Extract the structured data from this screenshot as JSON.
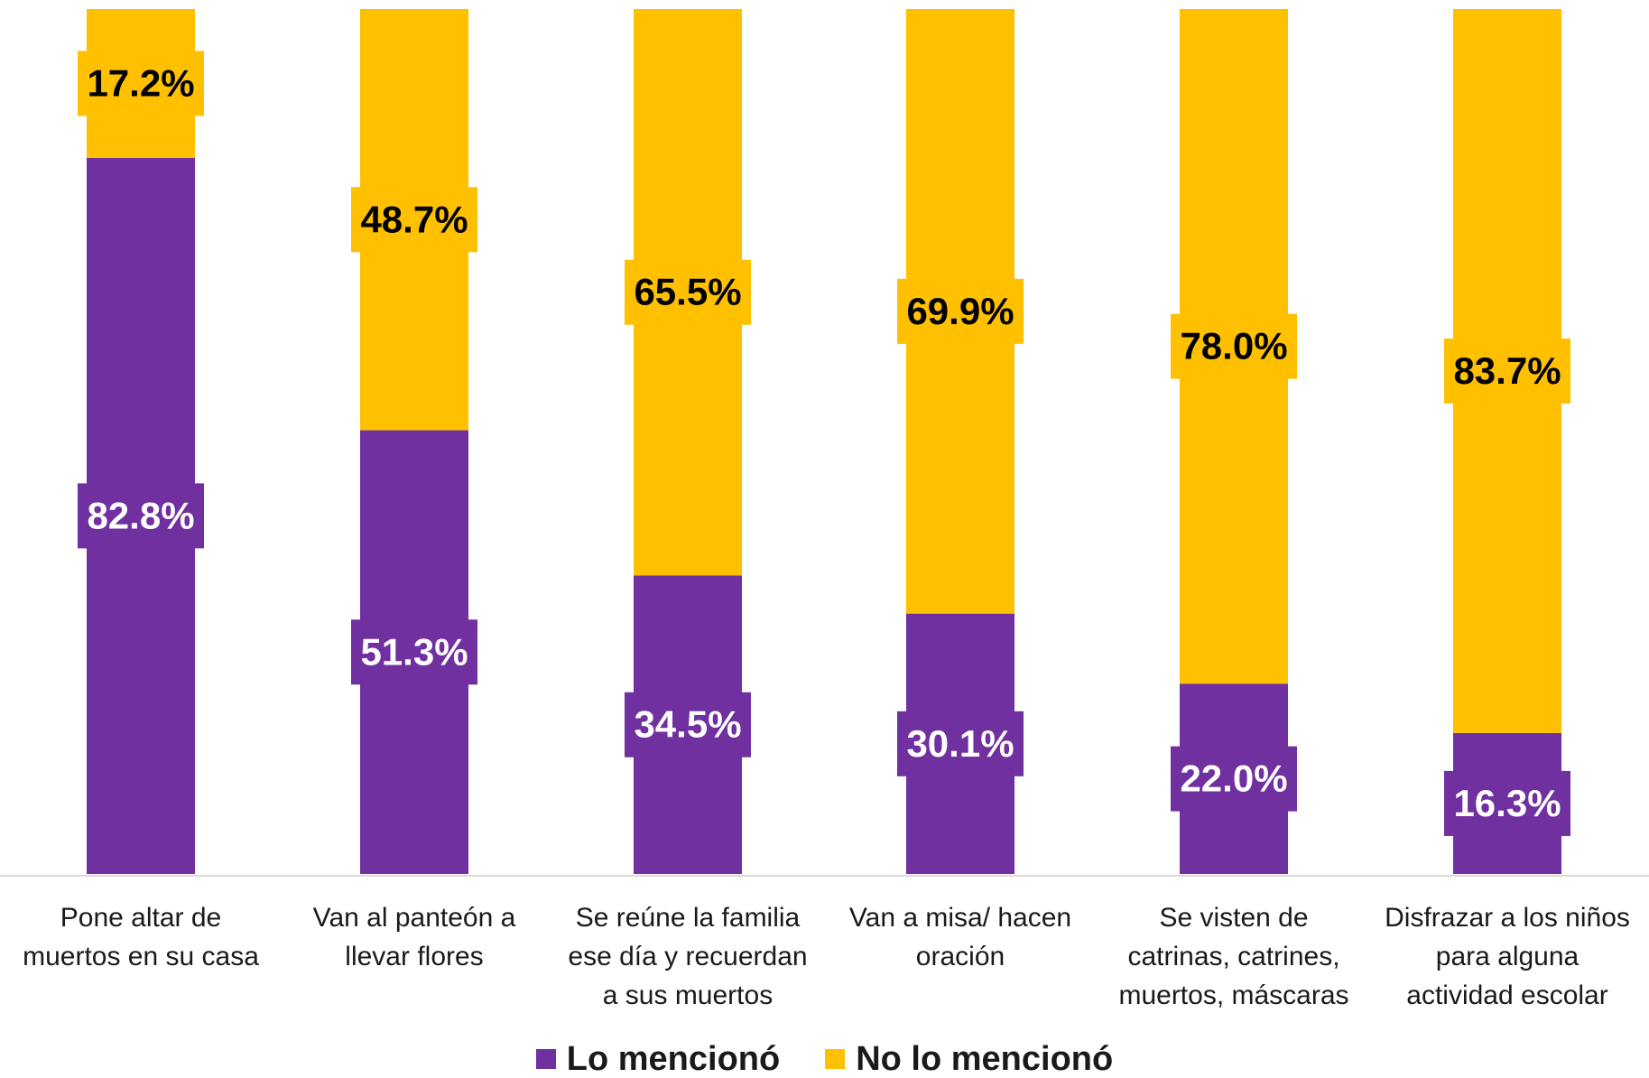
{
  "chart_data": {
    "type": "bar",
    "stacked": true,
    "normalized": true,
    "categories": [
      [
        "Pone altar de",
        "muertos en su casa"
      ],
      [
        "Van al panteón a",
        "llevar flores"
      ],
      [
        "Se reúne la familia",
        "ese día y recuerdan",
        "a sus muertos"
      ],
      [
        "Van a misa/ hacen",
        "oración"
      ],
      [
        "Se visten de",
        "catrinas, catrines,",
        "muertos, máscaras"
      ],
      [
        "Disfrazar a los niños",
        "para alguna",
        "actividad escolar"
      ]
    ],
    "series": [
      {
        "name": "Lo mencionó",
        "color": "#7030A0",
        "values": [
          82.8,
          51.3,
          34.5,
          30.1,
          22.0,
          16.3
        ],
        "labels": [
          "82.8%",
          "51.3%",
          "34.5%",
          "30.1%",
          "22.0%",
          "16.3%"
        ]
      },
      {
        "name": "No lo mencionó",
        "color": "#FFC000",
        "values": [
          17.2,
          48.7,
          65.5,
          69.9,
          78.0,
          83.7
        ],
        "labels": [
          "17.2%",
          "48.7%",
          "65.5%",
          "69.9%",
          "78.0%",
          "83.7%"
        ]
      }
    ],
    "ylim": [
      0,
      100
    ],
    "grid": false,
    "legend_position": "bottom",
    "axis_color": "#D9D9D9"
  }
}
